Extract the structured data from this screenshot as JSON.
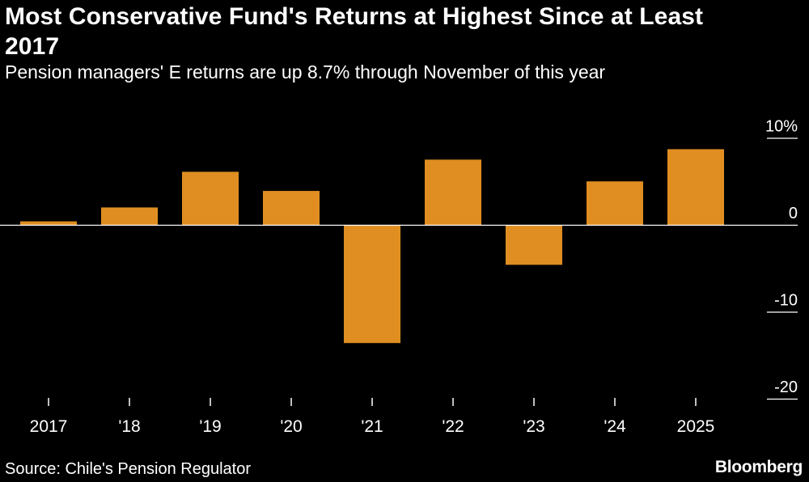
{
  "title": "Most Conservative Fund's Returns at Highest Since at Least 2017",
  "subtitle": "Pension managers' E returns are up 8.7% through November of this year",
  "source": "Source: Chile's Pension Regulator",
  "logo": "Bloomberg",
  "colors": {
    "bar": "#E08E22",
    "background": "#000000",
    "text": "#FFFFFF"
  },
  "chart_data": {
    "type": "bar",
    "categories": [
      "2017",
      "'18",
      "'19",
      "'20",
      "'21",
      "'22",
      "'23",
      "'24",
      "2025"
    ],
    "values": [
      0.4,
      2.0,
      6.1,
      3.9,
      -13.6,
      7.5,
      -4.6,
      5.0,
      8.7
    ],
    "ylim": [
      -20,
      10
    ],
    "yticks": [
      10,
      0,
      -10,
      -20
    ],
    "ytick_labels": [
      "10%",
      "0",
      "-10",
      "-20"
    ],
    "xlabel": "",
    "ylabel": ""
  }
}
